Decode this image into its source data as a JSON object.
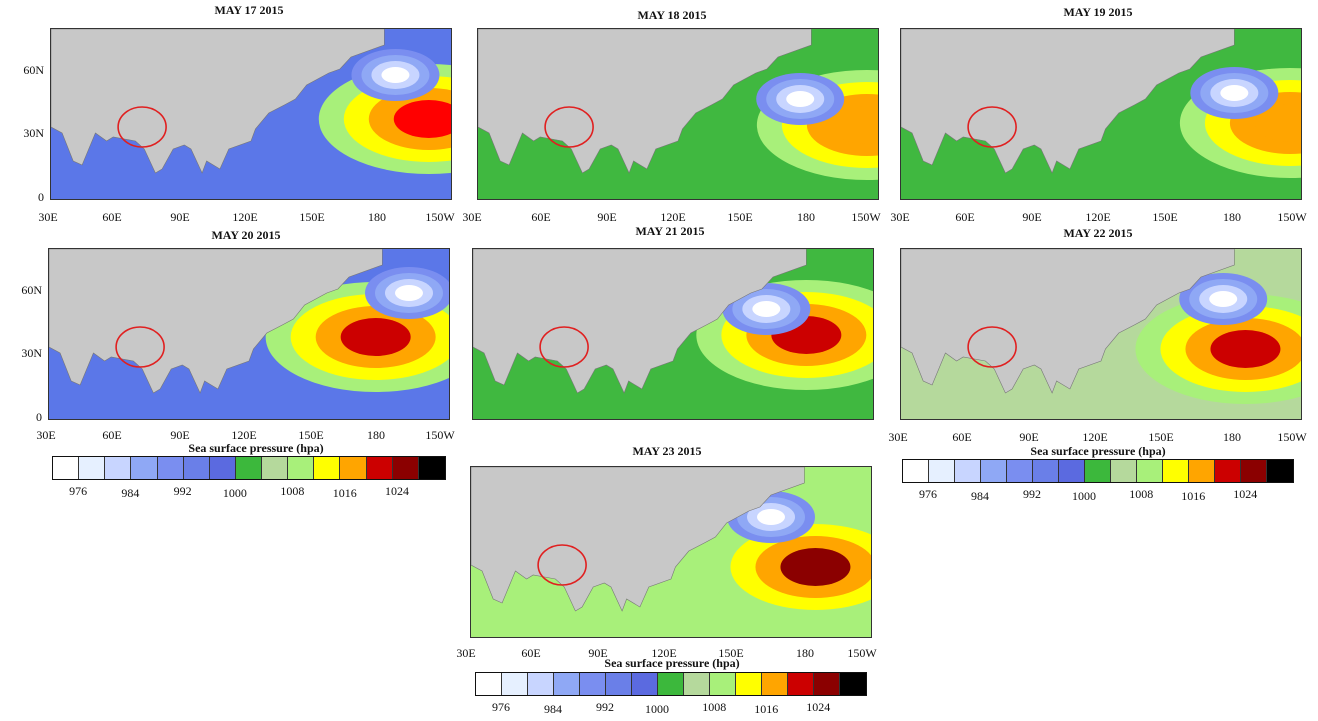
{
  "lat_labels": [
    "60N",
    "30N",
    "0"
  ],
  "lon_labels": [
    "30E",
    "60E",
    "90E",
    "120E",
    "150E",
    "180",
    "150W"
  ],
  "panels": [
    {
      "id": "may17",
      "title": "MAY 17 2015",
      "ocean_base": "#5b77e8",
      "high_color": "#ff0000",
      "low_color": "#ffffff",
      "high_lon": 200,
      "high_lat": 35,
      "low_lon": 185,
      "low_lat": 57
    },
    {
      "id": "may18",
      "title": "MAY 18 2015",
      "ocean_base": "#40b840",
      "high_color": "#ffa500",
      "low_color": "#ffffff",
      "high_lon": 205,
      "high_lat": 32,
      "low_lon": 175,
      "low_lat": 45
    },
    {
      "id": "may19",
      "title": "MAY 19 2015",
      "ocean_base": "#40b840",
      "high_color": "#ffa500",
      "low_color": "#ffffff",
      "high_lon": 205,
      "high_lat": 33,
      "low_lon": 180,
      "low_lat": 48
    },
    {
      "id": "may20",
      "title": "MAY 20 2015",
      "ocean_base": "#5b77e8",
      "high_color": "#cc0000",
      "low_color": "#ffffff",
      "high_lon": 177,
      "high_lat": 36,
      "low_lon": 192,
      "low_lat": 58
    },
    {
      "id": "may21",
      "title": "MAY 21 2015",
      "ocean_base": "#40b840",
      "high_color": "#cc0000",
      "low_color": "#ffffff",
      "high_lon": 180,
      "high_lat": 37,
      "low_lon": 162,
      "low_lat": 50
    },
    {
      "id": "may22",
      "title": "MAY 22  2015",
      "ocean_base": "#b5d99c",
      "high_color": "#cc0000",
      "low_color": "#ffffff",
      "high_lon": 185,
      "high_lat": 30,
      "low_lon": 175,
      "low_lat": 55
    },
    {
      "id": "may23",
      "title": "MAY 23 2015",
      "ocean_base": "#a8f07a",
      "high_color": "#8b0000",
      "low_color": "#ffffff",
      "high_lon": 185,
      "high_lat": 30,
      "low_lon": 165,
      "low_lat": 55
    }
  ],
  "colorbar": {
    "title": "Sea surface pressure (hpa)",
    "colors": [
      "#ffffff",
      "#e6f0ff",
      "#c8d5ff",
      "#8fa8f5",
      "#7a8ef0",
      "#6a7fe8",
      "#5b6ae0",
      "#3cb83c",
      "#b5d99c",
      "#a8f07a",
      "#ffff00",
      "#ffa500",
      "#cc0000",
      "#8b0000",
      "#000000"
    ],
    "labels": [
      "976",
      "984",
      "992",
      "1000",
      "1008",
      "1016",
      "1024"
    ]
  }
}
